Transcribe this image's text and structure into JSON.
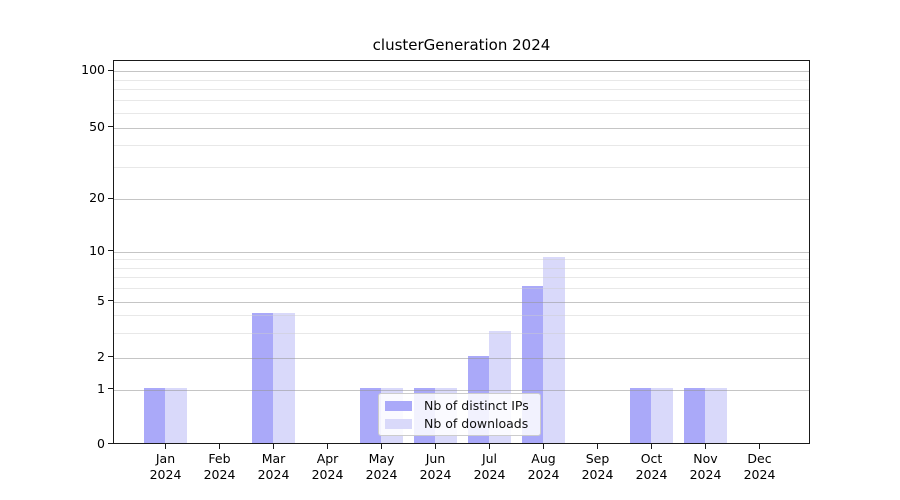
{
  "title": "clusterGeneration 2024",
  "chart_data": {
    "type": "bar",
    "title": "clusterGeneration 2024",
    "categories": [
      "Jan 2024",
      "Feb 2024",
      "Mar 2024",
      "Apr 2024",
      "May 2024",
      "Jun 2024",
      "Jul 2024",
      "Aug 2024",
      "Sep 2024",
      "Oct 2024",
      "Nov 2024",
      "Dec 2024"
    ],
    "series": [
      {
        "name": "Nb of distinct IPs",
        "color": "#aaa9f9",
        "values": [
          1,
          0,
          4,
          0,
          1,
          1,
          2,
          6,
          0,
          1,
          1,
          0
        ]
      },
      {
        "name": "Nb of downloads",
        "color": "#d9d9fa",
        "values": [
          1,
          0,
          4,
          0,
          1,
          1,
          3,
          9,
          0,
          1,
          1,
          0
        ]
      }
    ],
    "xlabel": "",
    "ylabel": "",
    "y_axis_type": "log-like with linear segment to 0",
    "y_tick_labels": [
      "0",
      "1",
      "2",
      "5",
      "10",
      "20",
      "50",
      "100"
    ],
    "y_ticks": [
      0,
      1,
      2,
      5,
      10,
      20,
      50,
      100
    ],
    "y_minor_ticks": [
      3,
      4,
      6,
      7,
      8,
      9,
      30,
      40,
      60,
      70,
      80,
      90
    ],
    "ylim": [
      0,
      130
    ],
    "grid": "on",
    "legend_position": "inside lower center",
    "colors": {
      "axis_frame": "#1a1a1a",
      "major_gridline": "#c8c8c8",
      "minor_gridline": "#ebebeb",
      "background": "#ffffff"
    }
  },
  "legend": {
    "items": [
      {
        "label": "Nb of distinct IPs",
        "color": "#aaa9f9"
      },
      {
        "label": "Nb of downloads",
        "color": "#d9d9fa"
      }
    ]
  }
}
